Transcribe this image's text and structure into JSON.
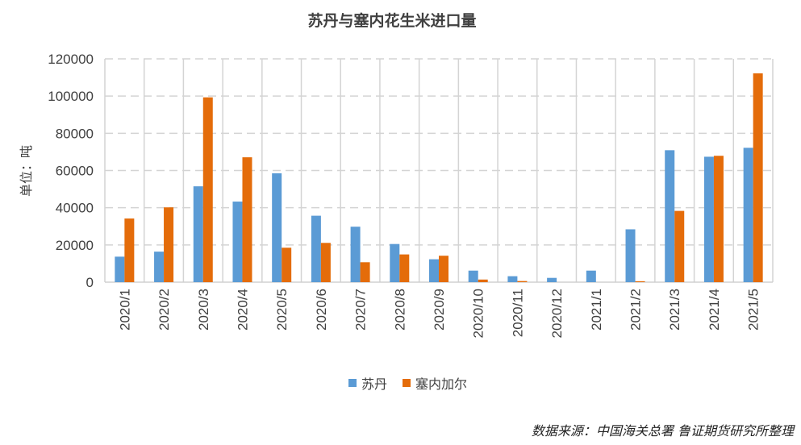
{
  "chart_data": {
    "type": "bar",
    "title": "苏丹与塞内花生米进口量",
    "ylabel": "单位：吨",
    "xlabel": "",
    "ylim": [
      0,
      120000
    ],
    "yticks": [
      "0",
      "20000",
      "40000",
      "60000",
      "80000",
      "100000",
      "120000"
    ],
    "grid": true,
    "legend_position": "bottom",
    "categories": [
      "2020/1",
      "2020/2",
      "2020/3",
      "2020/4",
      "2020/5",
      "2020/6",
      "2020/7",
      "2020/8",
      "2020/9",
      "2020/10",
      "2020/11",
      "2020/12",
      "2021/1",
      "2021/2",
      "2021/3",
      "2021/4",
      "2021/5"
    ],
    "series": [
      {
        "name": "苏丹",
        "color": "#5B9BD5",
        "values": [
          13700,
          16400,
          51500,
          43300,
          58500,
          35700,
          29800,
          20500,
          12300,
          6200,
          3200,
          2300,
          6200,
          28400,
          70900,
          67400,
          72200
        ]
      },
      {
        "name": "塞内加尔",
        "color": "#E46C0A",
        "values": [
          34200,
          40200,
          99300,
          67100,
          18500,
          21100,
          10700,
          14900,
          14200,
          1400,
          600,
          0,
          0,
          500,
          38300,
          67900,
          112200
        ]
      }
    ],
    "source": "数据来源：中国海关总署 鲁证期货研究所整理"
  }
}
